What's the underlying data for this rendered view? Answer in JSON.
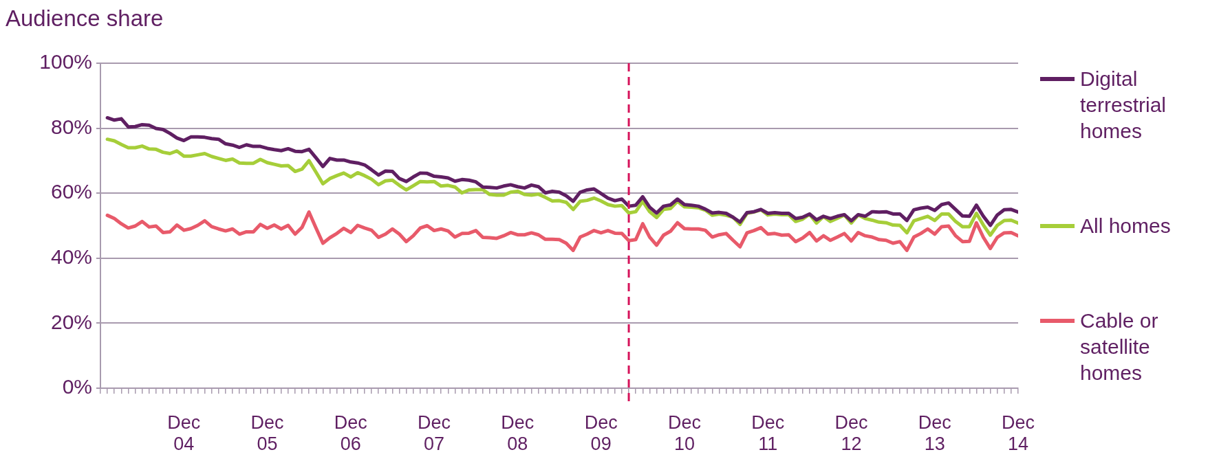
{
  "chart_data": {
    "type": "line",
    "ylabel": "Audience share",
    "legend": "right",
    "grid": "y",
    "marker": "none",
    "line_style": "solid",
    "x": [
      "2004-01",
      "2004-02",
      "2004-03",
      "2004-04",
      "2004-05",
      "2004-06",
      "2004-07",
      "2004-08",
      "2004-09",
      "2004-10",
      "2004-11",
      "2004-12",
      "2005-01",
      "2005-02",
      "2005-03",
      "2005-04",
      "2005-05",
      "2005-06",
      "2005-07",
      "2005-08",
      "2005-09",
      "2005-10",
      "2005-11",
      "2005-12",
      "2006-01",
      "2006-02",
      "2006-03",
      "2006-04",
      "2006-05",
      "2006-06",
      "2006-07",
      "2006-08",
      "2006-09",
      "2006-10",
      "2006-11",
      "2006-12",
      "2007-01",
      "2007-02",
      "2007-03",
      "2007-04",
      "2007-05",
      "2007-06",
      "2007-07",
      "2007-08",
      "2007-09",
      "2007-10",
      "2007-11",
      "2007-12",
      "2008-01",
      "2008-02",
      "2008-03",
      "2008-04",
      "2008-05",
      "2008-06",
      "2008-07",
      "2008-08",
      "2008-09",
      "2008-10",
      "2008-11",
      "2008-12",
      "2009-01",
      "2009-02",
      "2009-03",
      "2009-04",
      "2009-05",
      "2009-06",
      "2009-07",
      "2009-08",
      "2009-09",
      "2009-10",
      "2009-11",
      "2009-12",
      "2010-01",
      "2010-02",
      "2010-03",
      "2010-04",
      "2010-05",
      "2010-06",
      "2010-07",
      "2010-08",
      "2010-09",
      "2010-10",
      "2010-11",
      "2010-12",
      "2011-01",
      "2011-02",
      "2011-03",
      "2011-04",
      "2011-05",
      "2011-06",
      "2011-07",
      "2011-08",
      "2011-09",
      "2011-10",
      "2011-11",
      "2011-12",
      "2012-01",
      "2012-02",
      "2012-03",
      "2012-04",
      "2012-05",
      "2012-06",
      "2012-07",
      "2012-08",
      "2012-09",
      "2012-10",
      "2012-11",
      "2012-12",
      "2013-01",
      "2013-02",
      "2013-03",
      "2013-04",
      "2013-05",
      "2013-06",
      "2013-07",
      "2013-08",
      "2013-09",
      "2013-10",
      "2013-11",
      "2013-12",
      "2014-01",
      "2014-02",
      "2014-03",
      "2014-04",
      "2014-05",
      "2014-06",
      "2014-07",
      "2014-08",
      "2014-09",
      "2014-10",
      "2014-11",
      "2014-12"
    ],
    "xlim": [
      "2003-12",
      "2014-12"
    ],
    "xticks": [
      {
        "value": "2003-12",
        "label": null
      },
      {
        "value": "2004-01",
        "label": null
      },
      {
        "value": "2004-02",
        "label": null
      },
      {
        "value": "2004-03",
        "label": null
      },
      {
        "value": "2004-04",
        "label": null
      },
      {
        "value": "2004-05",
        "label": null
      },
      {
        "value": "2004-06",
        "label": null
      },
      {
        "value": "2004-07",
        "label": null
      },
      {
        "value": "2004-08",
        "label": null
      },
      {
        "value": "2004-09",
        "label": null
      },
      {
        "value": "2004-10",
        "label": null
      },
      {
        "value": "2004-11",
        "label": null
      },
      {
        "value": "2004-12",
        "label": "Dec 04"
      },
      {
        "value": "2005-01",
        "label": null
      },
      {
        "value": "2005-02",
        "label": null
      },
      {
        "value": "2005-03",
        "label": null
      },
      {
        "value": "2005-04",
        "label": null
      },
      {
        "value": "2005-05",
        "label": null
      },
      {
        "value": "2005-06",
        "label": null
      },
      {
        "value": "2005-07",
        "label": null
      },
      {
        "value": "2005-08",
        "label": null
      },
      {
        "value": "2005-09",
        "label": null
      },
      {
        "value": "2005-10",
        "label": null
      },
      {
        "value": "2005-11",
        "label": null
      },
      {
        "value": "2005-12",
        "label": "Dec 05"
      },
      {
        "value": "2006-01",
        "label": null
      },
      {
        "value": "2006-02",
        "label": null
      },
      {
        "value": "2006-03",
        "label": null
      },
      {
        "value": "2006-04",
        "label": null
      },
      {
        "value": "2006-05",
        "label": null
      },
      {
        "value": "2006-06",
        "label": null
      },
      {
        "value": "2006-07",
        "label": null
      },
      {
        "value": "2006-08",
        "label": null
      },
      {
        "value": "2006-09",
        "label": null
      },
      {
        "value": "2006-10",
        "label": null
      },
      {
        "value": "2006-11",
        "label": null
      },
      {
        "value": "2006-12",
        "label": "Dec 06"
      },
      {
        "value": "2007-01",
        "label": null
      },
      {
        "value": "2007-02",
        "label": null
      },
      {
        "value": "2007-03",
        "label": null
      },
      {
        "value": "2007-04",
        "label": null
      },
      {
        "value": "2007-05",
        "label": null
      },
      {
        "value": "2007-06",
        "label": null
      },
      {
        "value": "2007-07",
        "label": null
      },
      {
        "value": "2007-08",
        "label": null
      },
      {
        "value": "2007-09",
        "label": null
      },
      {
        "value": "2007-10",
        "label": null
      },
      {
        "value": "2007-11",
        "label": null
      },
      {
        "value": "2007-12",
        "label": "Dec 07"
      },
      {
        "value": "2008-01",
        "label": null
      },
      {
        "value": "2008-02",
        "label": null
      },
      {
        "value": "2008-03",
        "label": null
      },
      {
        "value": "2008-04",
        "label": null
      },
      {
        "value": "2008-05",
        "label": null
      },
      {
        "value": "2008-06",
        "label": null
      },
      {
        "value": "2008-07",
        "label": null
      },
      {
        "value": "2008-08",
        "label": null
      },
      {
        "value": "2008-09",
        "label": null
      },
      {
        "value": "2008-10",
        "label": null
      },
      {
        "value": "2008-11",
        "label": null
      },
      {
        "value": "2008-12",
        "label": "Dec 08"
      },
      {
        "value": "2009-01",
        "label": null
      },
      {
        "value": "2009-02",
        "label": null
      },
      {
        "value": "2009-03",
        "label": null
      },
      {
        "value": "2009-04",
        "label": null
      },
      {
        "value": "2009-05",
        "label": null
      },
      {
        "value": "2009-06",
        "label": null
      },
      {
        "value": "2009-07",
        "label": null
      },
      {
        "value": "2009-08",
        "label": null
      },
      {
        "value": "2009-09",
        "label": null
      },
      {
        "value": "2009-10",
        "label": null
      },
      {
        "value": "2009-11",
        "label": null
      },
      {
        "value": "2009-12",
        "label": "Dec 09"
      },
      {
        "value": "2010-01",
        "label": null
      },
      {
        "value": "2010-02",
        "label": null
      },
      {
        "value": "2010-03",
        "label": null
      },
      {
        "value": "2010-04",
        "label": null
      },
      {
        "value": "2010-05",
        "label": null
      },
      {
        "value": "2010-06",
        "label": null
      },
      {
        "value": "2010-07",
        "label": null
      },
      {
        "value": "2010-08",
        "label": null
      },
      {
        "value": "2010-09",
        "label": null
      },
      {
        "value": "2010-10",
        "label": null
      },
      {
        "value": "2010-11",
        "label": null
      },
      {
        "value": "2010-12",
        "label": "Dec 10"
      },
      {
        "value": "2011-01",
        "label": null
      },
      {
        "value": "2011-02",
        "label": null
      },
      {
        "value": "2011-03",
        "label": null
      },
      {
        "value": "2011-04",
        "label": null
      },
      {
        "value": "2011-05",
        "label": null
      },
      {
        "value": "2011-06",
        "label": null
      },
      {
        "value": "2011-07",
        "label": null
      },
      {
        "value": "2011-08",
        "label": null
      },
      {
        "value": "2011-09",
        "label": null
      },
      {
        "value": "2011-10",
        "label": null
      },
      {
        "value": "2011-11",
        "label": null
      },
      {
        "value": "2011-12",
        "label": "Dec 11"
      },
      {
        "value": "2012-01",
        "label": null
      },
      {
        "value": "2012-02",
        "label": null
      },
      {
        "value": "2012-03",
        "label": null
      },
      {
        "value": "2012-04",
        "label": null
      },
      {
        "value": "2012-05",
        "label": null
      },
      {
        "value": "2012-06",
        "label": null
      },
      {
        "value": "2012-07",
        "label": null
      },
      {
        "value": "2012-08",
        "label": null
      },
      {
        "value": "2012-09",
        "label": null
      },
      {
        "value": "2012-10",
        "label": null
      },
      {
        "value": "2012-11",
        "label": null
      },
      {
        "value": "2012-12",
        "label": "Dec 12"
      },
      {
        "value": "2013-01",
        "label": null
      },
      {
        "value": "2013-02",
        "label": null
      },
      {
        "value": "2013-03",
        "label": null
      },
      {
        "value": "2013-04",
        "label": null
      },
      {
        "value": "2013-05",
        "label": null
      },
      {
        "value": "2013-06",
        "label": null
      },
      {
        "value": "2013-07",
        "label": null
      },
      {
        "value": "2013-08",
        "label": null
      },
      {
        "value": "2013-09",
        "label": null
      },
      {
        "value": "2013-10",
        "label": null
      },
      {
        "value": "2013-11",
        "label": null
      },
      {
        "value": "2013-12",
        "label": "Dec 13"
      },
      {
        "value": "2014-01",
        "label": null
      },
      {
        "value": "2014-02",
        "label": null
      },
      {
        "value": "2014-03",
        "label": null
      },
      {
        "value": "2014-04",
        "label": null
      },
      {
        "value": "2014-05",
        "label": null
      },
      {
        "value": "2014-06",
        "label": null
      },
      {
        "value": "2014-07",
        "label": null
      },
      {
        "value": "2014-08",
        "label": null
      },
      {
        "value": "2014-09",
        "label": null
      },
      {
        "value": "2014-10",
        "label": null
      },
      {
        "value": "2014-11",
        "label": null
      },
      {
        "value": "2014-12",
        "label": "Dec 14"
      }
    ],
    "ylim": [
      0,
      100
    ],
    "yticks": [
      {
        "value": 0,
        "label": "0%"
      },
      {
        "value": 20,
        "label": "20%"
      },
      {
        "value": 40,
        "label": "40%"
      },
      {
        "value": 60,
        "label": "60%"
      },
      {
        "value": 80,
        "label": "80%"
      },
      {
        "value": 100,
        "label": "100%"
      }
    ],
    "ref_lines": [
      {
        "axis": "x",
        "value": "2010-04",
        "color": "#d6135a",
        "line_style": "dashed"
      }
    ],
    "series": [
      {
        "name": "Digital terrestrial homes",
        "color": "#5f1f62",
        "values": [
          83.2,
          82.5,
          82.9,
          80.4,
          80.5,
          81.1,
          80.9,
          79.9,
          79.6,
          78.4,
          77.0,
          76.2,
          77.3,
          77.3,
          77.2,
          76.8,
          76.6,
          75.2,
          74.8,
          74.1,
          74.9,
          74.4,
          74.4,
          73.8,
          73.4,
          73.1,
          73.7,
          72.9,
          72.8,
          73.5,
          70.9,
          68.2,
          70.7,
          70.2,
          70.2,
          69.6,
          69.3,
          68.7,
          67.2,
          65.6,
          66.8,
          66.7,
          64.5,
          63.6,
          65.0,
          66.2,
          66.1,
          65.2,
          65.0,
          64.7,
          63.7,
          64.2,
          64.0,
          63.5,
          61.9,
          61.8,
          61.6,
          62.2,
          62.6,
          62.0,
          61.6,
          62.5,
          62.0,
          60.1,
          60.6,
          60.3,
          59.2,
          57.5,
          60.3,
          61.0,
          61.3,
          59.9,
          58.5,
          57.7,
          58.2,
          56.0,
          56.3,
          58.9,
          55.7,
          53.9,
          56.0,
          56.4,
          58.2,
          56.5,
          56.3,
          56.0,
          55.1,
          53.9,
          54.1,
          53.8,
          52.6,
          51.1,
          54.0,
          54.3,
          55.0,
          53.8,
          54.0,
          53.8,
          53.8,
          52.2,
          52.6,
          53.6,
          51.8,
          52.9,
          52.2,
          52.9,
          53.4,
          51.5,
          53.4,
          52.9,
          54.3,
          54.2,
          54.3,
          53.6,
          53.6,
          51.6,
          54.9,
          55.4,
          55.7,
          54.7,
          56.5,
          57.0,
          55.0,
          53.0,
          52.9,
          56.3,
          52.9,
          50.1,
          53.3,
          54.9,
          55.0,
          54.2
        ]
      },
      {
        "name": "All homes",
        "color": "#a6ce39",
        "values": [
          76.6,
          76.1,
          75.0,
          74.0,
          74.0,
          74.5,
          73.6,
          73.5,
          72.6,
          72.2,
          73.0,
          71.4,
          71.4,
          71.8,
          72.2,
          71.3,
          70.7,
          70.1,
          70.5,
          69.3,
          69.2,
          69.2,
          70.4,
          69.4,
          68.9,
          68.4,
          68.5,
          66.7,
          67.4,
          70.0,
          66.5,
          62.9,
          64.5,
          65.4,
          66.2,
          65.0,
          66.3,
          65.4,
          64.3,
          62.6,
          63.8,
          64.0,
          62.4,
          61.0,
          62.3,
          63.6,
          63.5,
          63.6,
          62.2,
          62.4,
          61.9,
          60.1,
          61.0,
          61.1,
          61.1,
          59.6,
          59.4,
          59.4,
          60.3,
          60.6,
          59.6,
          59.4,
          59.7,
          58.7,
          57.6,
          57.7,
          57.2,
          55.0,
          57.5,
          57.8,
          58.5,
          57.6,
          56.5,
          56.0,
          56.2,
          53.9,
          54.3,
          57.5,
          54.3,
          52.5,
          55.0,
          55.3,
          57.5,
          55.8,
          55.7,
          55.5,
          54.8,
          53.2,
          53.6,
          53.2,
          52.6,
          50.4,
          53.8,
          54.2,
          54.9,
          53.3,
          53.6,
          53.4,
          53.4,
          51.3,
          52.0,
          53.5,
          50.8,
          52.8,
          51.3,
          52.3,
          53.3,
          50.8,
          53.3,
          52.2,
          51.7,
          51.1,
          50.9,
          50.2,
          50.1,
          47.8,
          51.5,
          52.2,
          52.9,
          51.6,
          53.6,
          53.6,
          51.3,
          49.7,
          49.7,
          53.8,
          50.2,
          47.1,
          50.1,
          51.6,
          51.7,
          50.8
        ]
      },
      {
        "name": "Cable or satellite homes",
        "color": "#e85a6a",
        "values": [
          53.2,
          52.2,
          50.6,
          49.3,
          49.9,
          51.3,
          49.6,
          49.9,
          47.9,
          48.1,
          50.2,
          48.6,
          49.1,
          50.1,
          51.5,
          49.7,
          49.0,
          48.4,
          49.0,
          47.4,
          48.1,
          48.1,
          50.4,
          49.2,
          50.2,
          49.0,
          50.1,
          47.4,
          49.5,
          54.2,
          49.3,
          44.6,
          46.3,
          47.6,
          49.2,
          47.9,
          50.1,
          49.3,
          48.6,
          46.4,
          47.4,
          49.0,
          47.4,
          45.1,
          46.9,
          49.3,
          50.0,
          48.5,
          49.0,
          48.4,
          46.5,
          47.6,
          47.7,
          48.5,
          46.4,
          46.3,
          46.1,
          46.9,
          47.9,
          47.2,
          47.2,
          47.8,
          47.2,
          45.8,
          45.8,
          45.7,
          44.6,
          42.4,
          46.5,
          47.4,
          48.5,
          47.8,
          48.5,
          47.7,
          47.6,
          45.4,
          45.7,
          50.6,
          46.5,
          44.0,
          47.1,
          48.3,
          50.9,
          49.1,
          49.0,
          49.0,
          48.6,
          46.5,
          47.2,
          47.6,
          45.5,
          43.5,
          47.8,
          48.5,
          49.4,
          47.4,
          47.6,
          47.1,
          47.2,
          45.1,
          46.2,
          47.9,
          45.3,
          46.9,
          45.5,
          46.5,
          47.6,
          45.3,
          47.9,
          46.9,
          46.5,
          45.7,
          45.5,
          44.6,
          45.1,
          42.4,
          46.5,
          47.6,
          49.0,
          47.4,
          49.7,
          49.9,
          46.9,
          45.1,
          45.2,
          50.9,
          46.4,
          43.0,
          46.4,
          47.8,
          47.9,
          46.9
        ]
      }
    ]
  }
}
